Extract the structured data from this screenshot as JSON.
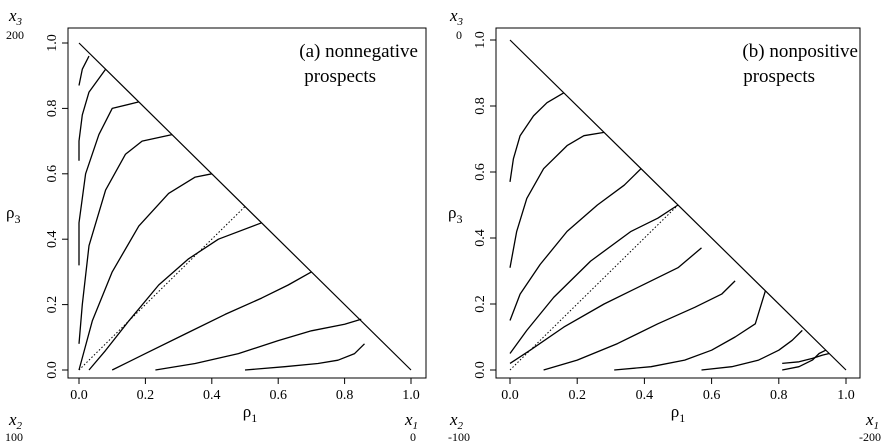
{
  "chart_data": [
    {
      "type": "line",
      "title_line1": "(a) nonnegative",
      "title_line2": "prospects",
      "xlabel": "ρ",
      "xlabel_sub": "1",
      "ylabel": "ρ",
      "ylabel_sub": "3",
      "xlim": [
        0,
        1
      ],
      "ylim": [
        0,
        1
      ],
      "xticks": [
        "0.0",
        "0.2",
        "0.4",
        "0.6",
        "0.8",
        "1.0"
      ],
      "yticks": [
        "0.0",
        "0.2",
        "0.4",
        "0.6",
        "0.8",
        "1.0"
      ],
      "corner_labels": {
        "top_left": {
          "var": "x",
          "sub": "3",
          "value": "200"
        },
        "bottom_left": {
          "var": "x",
          "sub": "2",
          "value": "100"
        },
        "bottom_right": {
          "var": "x",
          "sub": "1",
          "value": "0"
        }
      },
      "triangle_boundary": [
        [
          0,
          0
        ],
        [
          1,
          0
        ],
        [
          0,
          1
        ]
      ],
      "diagonal_dotted": [
        [
          0,
          0
        ],
        [
          0.5,
          0.5
        ]
      ],
      "indifference_curves": [
        [
          [
            0.0,
            0.87
          ],
          [
            0.01,
            0.92
          ],
          [
            0.03,
            0.96
          ]
        ],
        [
          [
            0.0,
            0.64
          ],
          [
            0.0,
            0.7
          ],
          [
            0.01,
            0.78
          ],
          [
            0.03,
            0.85
          ],
          [
            0.08,
            0.92
          ]
        ],
        [
          [
            0.0,
            0.32
          ],
          [
            0.0,
            0.45
          ],
          [
            0.02,
            0.6
          ],
          [
            0.06,
            0.72
          ],
          [
            0.1,
            0.8
          ],
          [
            0.18,
            0.82
          ]
        ],
        [
          [
            0.0,
            0.08
          ],
          [
            0.01,
            0.2
          ],
          [
            0.03,
            0.38
          ],
          [
            0.08,
            0.55
          ],
          [
            0.14,
            0.66
          ],
          [
            0.19,
            0.7
          ],
          [
            0.28,
            0.72
          ]
        ],
        [
          [
            0.0,
            0.0
          ],
          [
            0.04,
            0.15
          ],
          [
            0.1,
            0.3
          ],
          [
            0.18,
            0.44
          ],
          [
            0.27,
            0.54
          ],
          [
            0.35,
            0.59
          ],
          [
            0.4,
            0.6
          ]
        ],
        [
          [
            0.03,
            0.0
          ],
          [
            0.08,
            0.06
          ],
          [
            0.15,
            0.15
          ],
          [
            0.24,
            0.26
          ],
          [
            0.33,
            0.34
          ],
          [
            0.42,
            0.4
          ],
          [
            0.55,
            0.45
          ]
        ],
        [
          [
            0.1,
            0.0
          ],
          [
            0.2,
            0.05
          ],
          [
            0.32,
            0.11
          ],
          [
            0.44,
            0.17
          ],
          [
            0.55,
            0.22
          ],
          [
            0.63,
            0.26
          ],
          [
            0.7,
            0.3
          ]
        ],
        [
          [
            0.23,
            0.0
          ],
          [
            0.35,
            0.02
          ],
          [
            0.48,
            0.05
          ],
          [
            0.6,
            0.09
          ],
          [
            0.7,
            0.12
          ],
          [
            0.8,
            0.14
          ],
          [
            0.85,
            0.155
          ]
        ],
        [
          [
            0.5,
            0.0
          ],
          [
            0.62,
            0.01
          ],
          [
            0.72,
            0.02
          ],
          [
            0.78,
            0.03
          ],
          [
            0.83,
            0.05
          ],
          [
            0.86,
            0.08
          ]
        ]
      ]
    },
    {
      "type": "line",
      "title_line1": "(b) nonpositive",
      "title_line2": "prospects",
      "xlabel": "ρ",
      "xlabel_sub": "1",
      "ylabel": "ρ",
      "ylabel_sub": "3",
      "xlim": [
        0,
        1
      ],
      "ylim": [
        0,
        1
      ],
      "xticks": [
        "0.0",
        "0.2",
        "0.4",
        "0.6",
        "0.8",
        "1.0"
      ],
      "yticks": [
        "0.0",
        "0.2",
        "0.4",
        "0.6",
        "0.8",
        "1.0"
      ],
      "corner_labels": {
        "top_left": {
          "var": "x",
          "sub": "3",
          "value": "0"
        },
        "bottom_left": {
          "var": "x",
          "sub": "2",
          "value": "-100"
        },
        "bottom_right": {
          "var": "x",
          "sub": "1",
          "value": "-200"
        }
      },
      "triangle_boundary": [
        [
          0,
          0
        ],
        [
          1,
          0
        ],
        [
          0,
          1
        ]
      ],
      "diagonal_dotted": [
        [
          0,
          0
        ],
        [
          0.5,
          0.5
        ]
      ],
      "indifference_curves": [
        [
          [
            0.0,
            0.57
          ],
          [
            0.01,
            0.64
          ],
          [
            0.03,
            0.71
          ],
          [
            0.07,
            0.77
          ],
          [
            0.11,
            0.81
          ],
          [
            0.16,
            0.84
          ]
        ],
        [
          [
            0.0,
            0.31
          ],
          [
            0.02,
            0.42
          ],
          [
            0.05,
            0.52
          ],
          [
            0.1,
            0.61
          ],
          [
            0.17,
            0.68
          ],
          [
            0.22,
            0.71
          ],
          [
            0.28,
            0.72
          ]
        ],
        [
          [
            0.0,
            0.15
          ],
          [
            0.03,
            0.23
          ],
          [
            0.09,
            0.32
          ],
          [
            0.17,
            0.42
          ],
          [
            0.26,
            0.5
          ],
          [
            0.34,
            0.56
          ],
          [
            0.39,
            0.61
          ]
        ],
        [
          [
            0.0,
            0.05
          ],
          [
            0.05,
            0.12
          ],
          [
            0.13,
            0.22
          ],
          [
            0.24,
            0.33
          ],
          [
            0.36,
            0.42
          ],
          [
            0.44,
            0.46
          ],
          [
            0.5,
            0.5
          ]
        ],
        [
          [
            0.0,
            0.02
          ],
          [
            0.06,
            0.06
          ],
          [
            0.16,
            0.13
          ],
          [
            0.28,
            0.2
          ],
          [
            0.4,
            0.26
          ],
          [
            0.5,
            0.31
          ],
          [
            0.57,
            0.37
          ]
        ],
        [
          [
            0.1,
            0.0
          ],
          [
            0.2,
            0.03
          ],
          [
            0.32,
            0.08
          ],
          [
            0.44,
            0.14
          ],
          [
            0.55,
            0.19
          ],
          [
            0.63,
            0.23
          ],
          [
            0.67,
            0.27
          ]
        ],
        [
          [
            0.31,
            0.0
          ],
          [
            0.42,
            0.01
          ],
          [
            0.52,
            0.03
          ],
          [
            0.6,
            0.06
          ],
          [
            0.67,
            0.1
          ],
          [
            0.73,
            0.14
          ],
          [
            0.76,
            0.24
          ]
        ],
        [
          [
            0.57,
            0.0
          ],
          [
            0.66,
            0.01
          ],
          [
            0.74,
            0.03
          ],
          [
            0.8,
            0.06
          ],
          [
            0.84,
            0.09
          ],
          [
            0.87,
            0.12
          ]
        ],
        [
          [
            0.81,
            0.0
          ],
          [
            0.86,
            0.01
          ],
          [
            0.9,
            0.03
          ],
          [
            0.92,
            0.05
          ],
          [
            0.94,
            0.06
          ]
        ],
        [
          [
            0.81,
            0.02
          ],
          [
            0.86,
            0.025
          ],
          [
            0.9,
            0.035
          ],
          [
            0.93,
            0.045
          ],
          [
            0.95,
            0.05
          ]
        ]
      ]
    }
  ]
}
